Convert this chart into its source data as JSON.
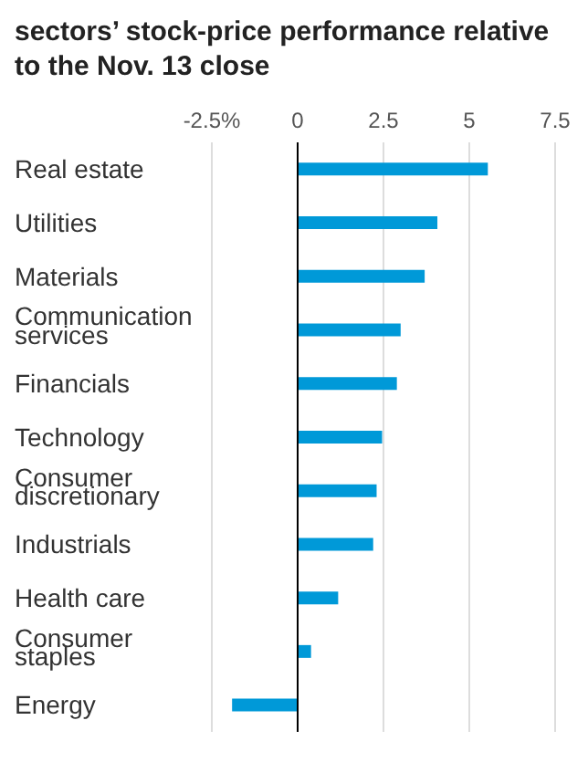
{
  "chart_data": {
    "type": "bar",
    "orientation": "horizontal",
    "title": "sectors’ stock-price performance relative to the Nov. 13 close",
    "categories": [
      "Real estate",
      "Utilities",
      "Materials",
      "Communication services",
      "Financials",
      "Technology",
      "Consumer discretionary",
      "Industrials",
      "Health care",
      "Consumer staples",
      "Energy"
    ],
    "values": [
      5.54,
      4.07,
      3.7,
      3.0,
      2.89,
      2.46,
      2.3,
      2.2,
      1.18,
      0.39,
      -1.91
    ],
    "color": "#0099d8",
    "xlim": [
      -2.5,
      7.5
    ],
    "xticks": [
      {
        "value": -2.5,
        "label": "-2.5%"
      },
      0,
      2.5,
      5,
      7.5
    ],
    "grid": "x",
    "ref_lines": [
      {
        "axis": "x",
        "value": 0,
        "color": "#000000"
      }
    ]
  }
}
